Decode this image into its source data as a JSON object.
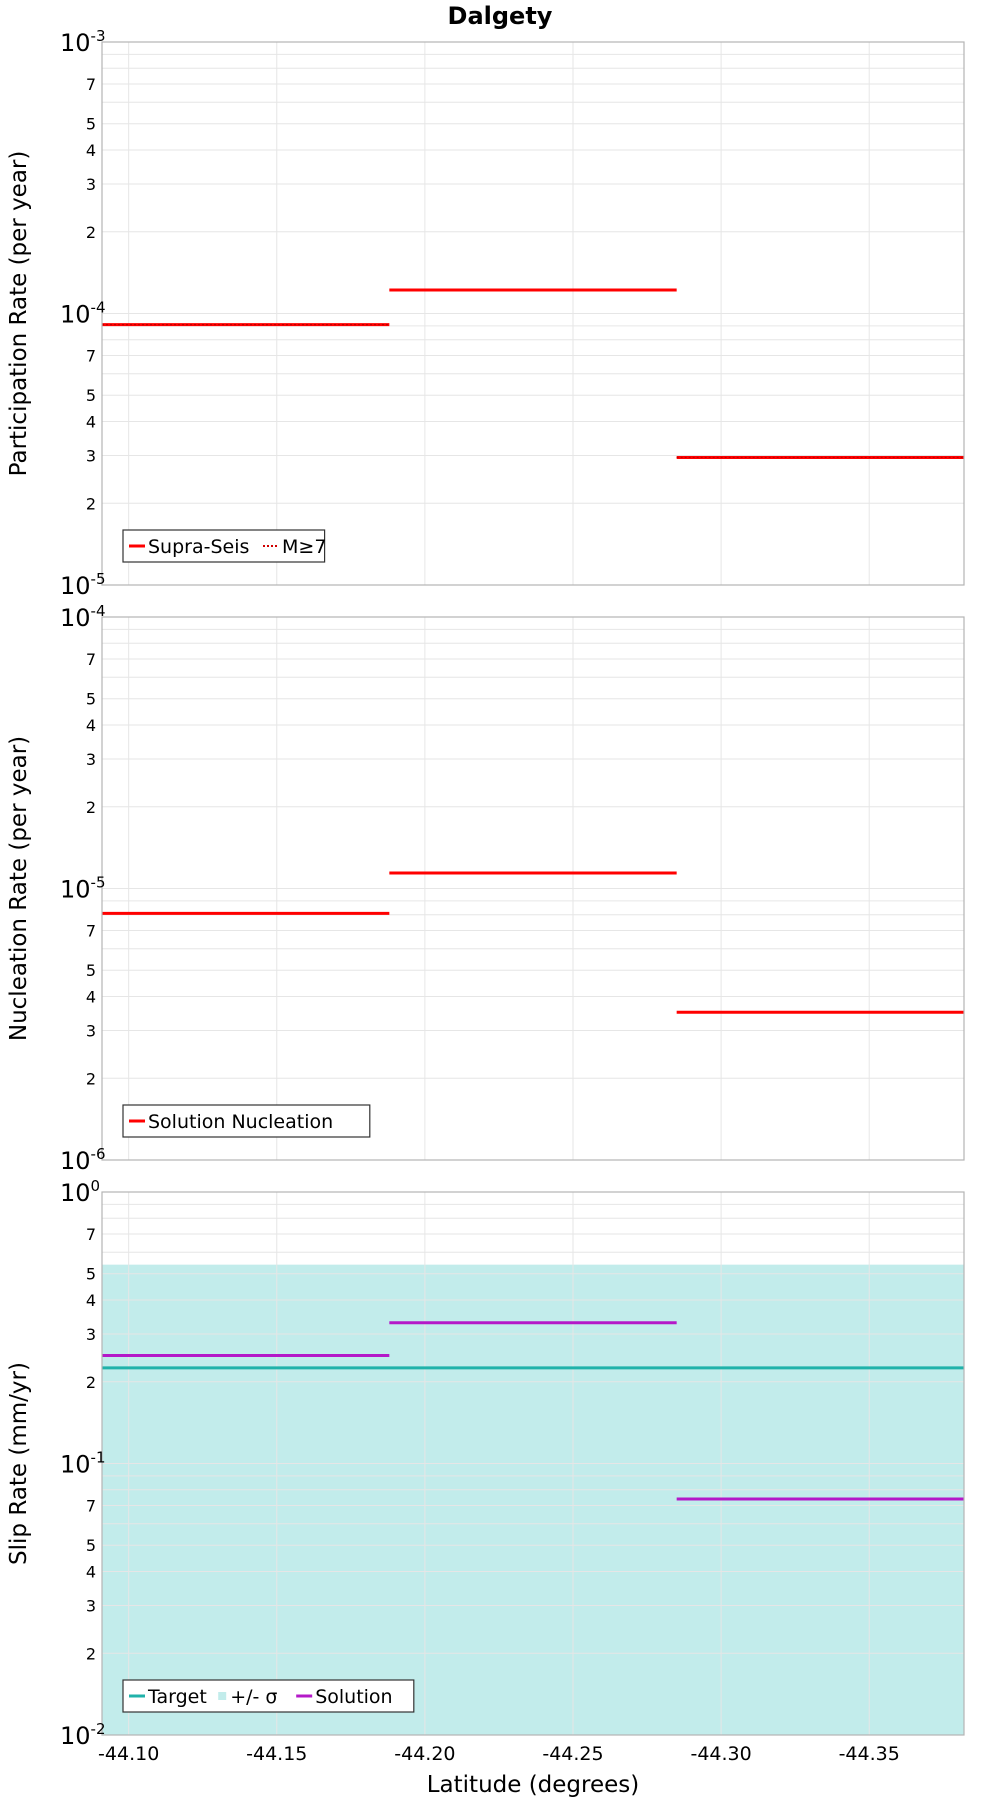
{
  "chart_data": [
    {
      "type": "line",
      "title": "Dalgety",
      "ylabel": "Participation Rate (per year)",
      "yscale": "log",
      "ylim": [
        1e-05,
        0.001
      ],
      "y_major_exponents": [
        "-5",
        "-4",
        "-3"
      ],
      "y_minor_labels": [
        "2",
        "3",
        "4",
        "5",
        "7"
      ],
      "legend": {
        "placement": "bottom-left",
        "entries": [
          {
            "label": "Supra-Seis",
            "style": "solid"
          },
          {
            "label": "M≥7",
            "style": "dotted"
          }
        ]
      },
      "series": [
        {
          "name": "Supra-Seis",
          "color": "#ff0000",
          "style": "solid",
          "segments": [
            {
              "x0": -44.091,
              "x1": -44.188,
              "y": 9.1e-05
            },
            {
              "x0": -44.188,
              "x1": -44.285,
              "y": 0.000122
            },
            {
              "x0": -44.285,
              "x1": -44.382,
              "y": 2.95e-05
            }
          ]
        },
        {
          "name": "M≥7",
          "color": "#ff0000",
          "style": "dotted",
          "segments": [
            {
              "x0": -44.091,
              "x1": -44.188,
              "y": 9.1e-05
            },
            {
              "x0": -44.285,
              "x1": -44.382,
              "y": 2.95e-05
            }
          ]
        }
      ]
    },
    {
      "type": "line",
      "ylabel": "Nucleation Rate (per year)",
      "yscale": "log",
      "ylim": [
        1e-06,
        0.0001
      ],
      "y_major_exponents": [
        "-6",
        "-5",
        "-4"
      ],
      "y_minor_labels": [
        "2",
        "3",
        "4",
        "5",
        "7"
      ],
      "legend": {
        "placement": "bottom-left",
        "entries": [
          {
            "label": "Solution Nucleation",
            "style": "solid"
          }
        ]
      },
      "series": [
        {
          "name": "Solution Nucleation",
          "color": "#ff0000",
          "style": "solid",
          "segments": [
            {
              "x0": -44.091,
              "x1": -44.188,
              "y": 8.1e-06
            },
            {
              "x0": -44.188,
              "x1": -44.285,
              "y": 1.14e-05
            },
            {
              "x0": -44.285,
              "x1": -44.382,
              "y": 3.5e-06
            }
          ]
        }
      ]
    },
    {
      "type": "line",
      "ylabel": "Slip Rate (mm/yr)",
      "xlabel": "Latitude (degrees)",
      "yscale": "log",
      "ylim": [
        0.01,
        1
      ],
      "y_major_exponents": [
        "-2",
        "-1",
        "0"
      ],
      "y_minor_labels": [
        "2",
        "3",
        "4",
        "5",
        "7"
      ],
      "x_ticks": [
        -44.1,
        -44.15,
        -44.2,
        -44.25,
        -44.3,
        -44.35
      ],
      "x_tick_labels": [
        "-44.10",
        "-44.15",
        "-44.20",
        "-44.25",
        "-44.30",
        "-44.35"
      ],
      "xlim": [
        -44.091,
        -44.382
      ],
      "legend": {
        "placement": "bottom-left",
        "entries": [
          {
            "label": "Target",
            "style": "solid"
          },
          {
            "label": "+/- σ",
            "style": "fill"
          },
          {
            "label": "Solution",
            "style": "solid"
          }
        ]
      },
      "band": {
        "name": "+/- σ",
        "color": "#c2eceb",
        "x0": -44.091,
        "x1": -44.382,
        "y0": 0.01,
        "y1": 0.54
      },
      "series": [
        {
          "name": "Target",
          "color": "#20b2aa",
          "style": "solid",
          "segments": [
            {
              "x0": -44.091,
              "x1": -44.382,
              "y": 0.225
            }
          ]
        },
        {
          "name": "Solution",
          "color": "#b419c8",
          "style": "solid",
          "segments": [
            {
              "x0": -44.091,
              "x1": -44.188,
              "y": 0.25
            },
            {
              "x0": -44.188,
              "x1": -44.285,
              "y": 0.33
            },
            {
              "x0": -44.285,
              "x1": -44.382,
              "y": 0.074
            }
          ]
        }
      ]
    }
  ]
}
